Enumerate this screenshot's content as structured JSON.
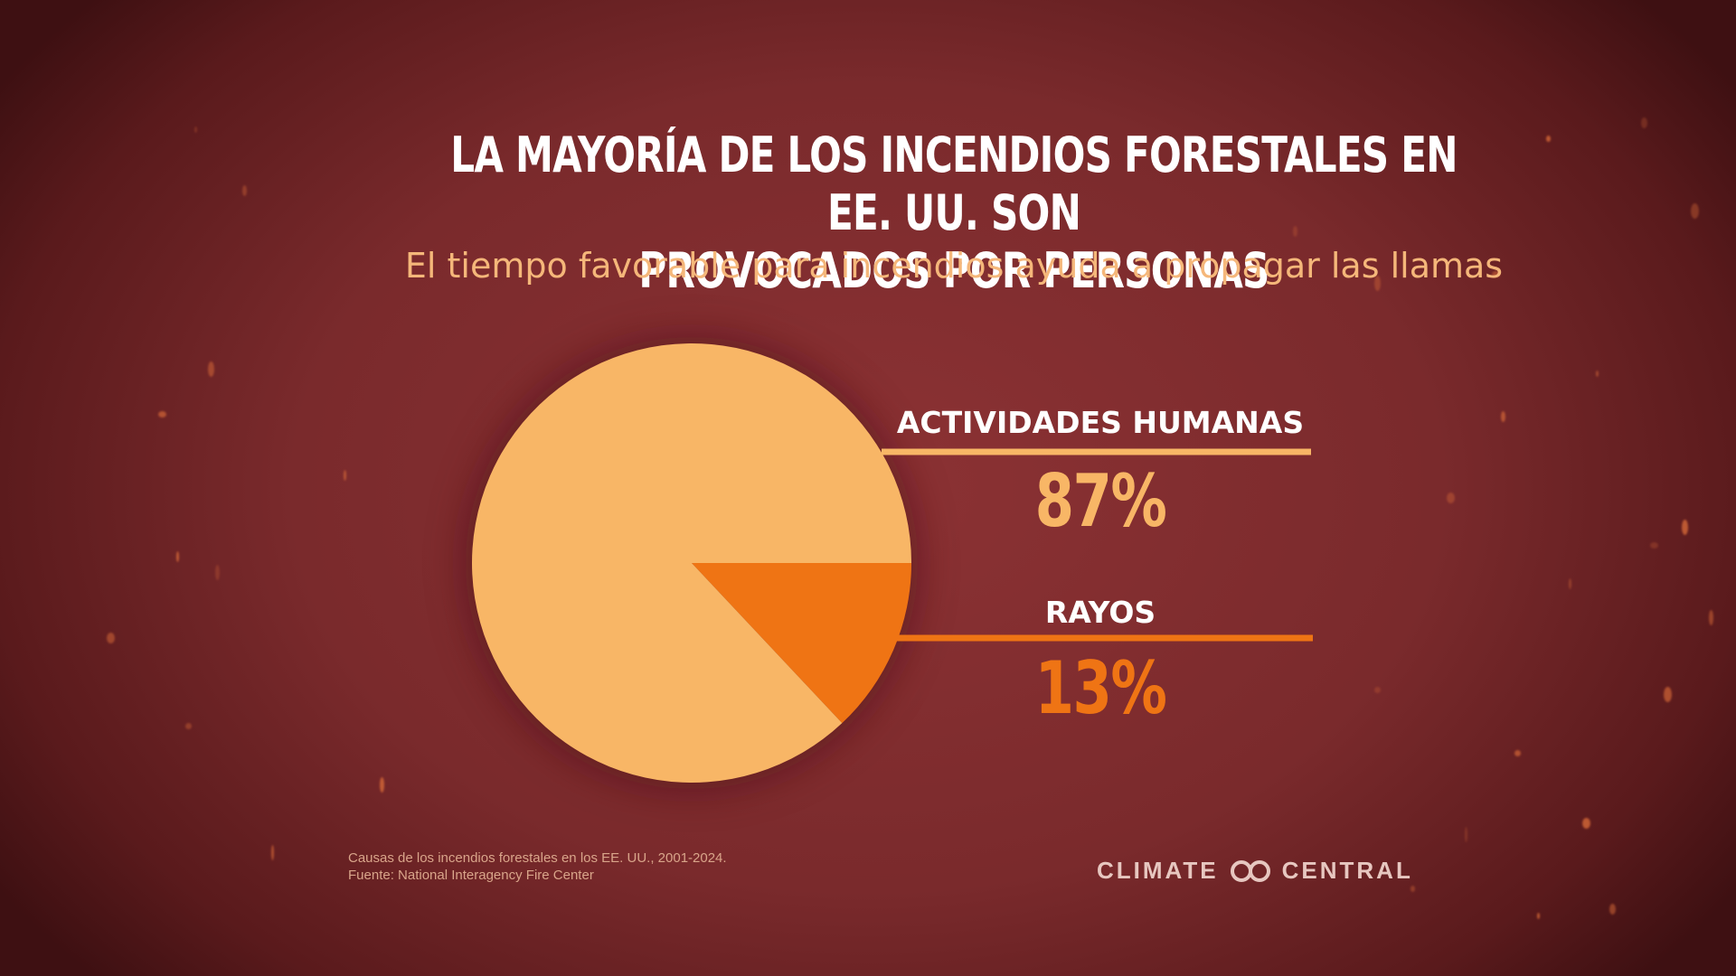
{
  "title_line1": "La mayoría de los incendios forestales en EE. UU. son",
  "title_line2": "provocados por personas",
  "subtitle": "El tiempo favorable para incendios ayuda a propagar las llamas",
  "chart_data": {
    "type": "pie",
    "categories": [
      "ACTIVIDADES HUMANAS",
      "RAYOS"
    ],
    "values": [
      87,
      13
    ],
    "value_labels": [
      "87%",
      "13%"
    ],
    "colors": [
      "#f8b666",
      "#ef7414"
    ],
    "label_colors": [
      "#f8b666",
      "#ef7414"
    ]
  },
  "footnote_line1": "Causas de los incendios forestales en los EE. UU., 2001-2024.",
  "footnote_line2": "Fuente: National Interagency Fire Center",
  "logo_left": "CLIMATE",
  "logo_right": "CENTRAL"
}
